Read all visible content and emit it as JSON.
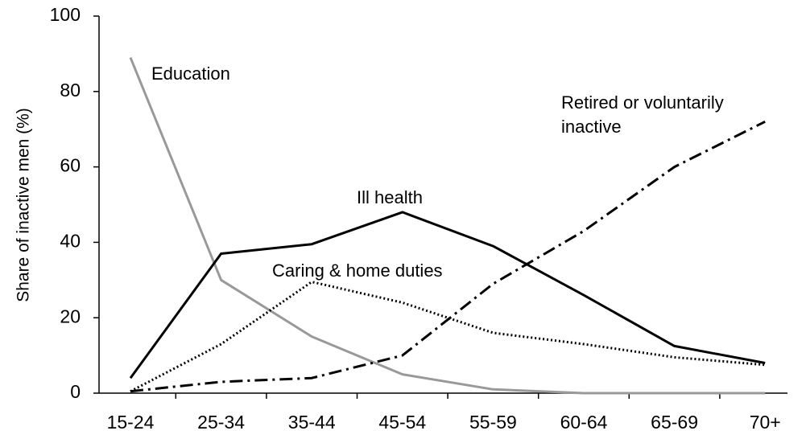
{
  "chart_data": {
    "type": "line",
    "y_label": "Share of inactive men (%)",
    "categories": [
      "15-24",
      "25-34",
      "35-44",
      "45-54",
      "55-59",
      "60-64",
      "65-69",
      "70+"
    ],
    "series": [
      {
        "name": "Education",
        "color": "#999999",
        "style": "solid",
        "values": [
          89,
          30,
          15,
          5,
          1,
          0,
          0,
          0
        ]
      },
      {
        "name": "Ill health",
        "color": "#000000",
        "style": "solid",
        "values": [
          4,
          37,
          39.5,
          48,
          39,
          26,
          12.5,
          8
        ]
      },
      {
        "name": "Caring & home duties",
        "color": "#000000",
        "style": "dotted",
        "values": [
          0.5,
          13,
          29.5,
          24,
          16,
          13,
          9.5,
          7.5
        ]
      },
      {
        "name": "Retired or voluntarily inactive",
        "color": "#000000",
        "style": "dashdot",
        "values": [
          0.5,
          3,
          4,
          10,
          29,
          43,
          60,
          72
        ]
      }
    ],
    "ylim": [
      0,
      100
    ],
    "yticks": [
      0,
      20,
      40,
      60,
      80,
      100
    ],
    "grid": false
  }
}
